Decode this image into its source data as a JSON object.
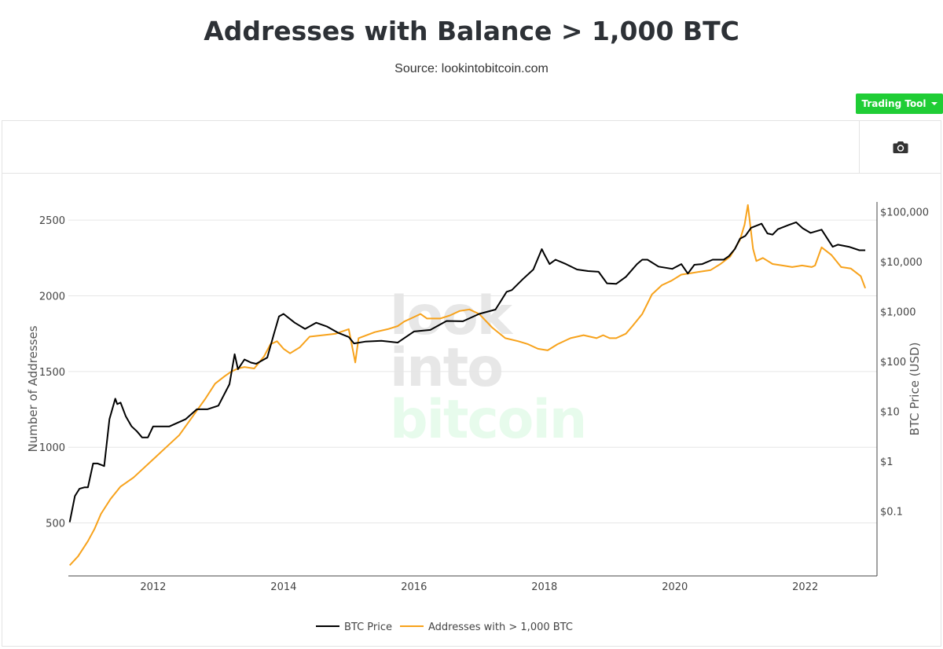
{
  "header": {
    "title": "Addresses with Balance > 1,000 BTC",
    "subtitle": "Source: lookintobitcoin.com"
  },
  "toolbar": {
    "trading_tool_label": "Trading Tool"
  },
  "icons": {
    "camera": "camera-icon",
    "dropdown": "caret-down-icon"
  },
  "watermark": {
    "line1": "look",
    "line2": "into",
    "line3": "bitcoin"
  },
  "colors": {
    "btc_price": "#000000",
    "addresses": "#f7a21b",
    "button": "#1fcd35"
  },
  "chart_data": {
    "type": "line",
    "xlabel": "",
    "ylabel": "Number of Addresses",
    "y2label": "BTC Price (USD)",
    "xlim": [
      2010.7,
      2023.1
    ],
    "ylim": [
      150,
      2620
    ],
    "y2lim_log10": [
      -2.3,
      5.2
    ],
    "y2_scale": "log",
    "grid": true,
    "legend_position": "bottom-center",
    "x_ticks": [
      "2012",
      "2014",
      "2016",
      "2018",
      "2020",
      "2022"
    ],
    "y_ticks": [
      "500",
      "1000",
      "1500",
      "2000",
      "2500"
    ],
    "y2_ticks": [
      "$0.1",
      "$1",
      "$10",
      "$100",
      "$1,000",
      "$10,000",
      "$100,000"
    ],
    "series": [
      {
        "name": "BTC Price",
        "axis": "y2",
        "x": [
          2010.72,
          2010.8,
          2010.87,
          2010.95,
          2011.0,
          2011.08,
          2011.15,
          2011.25,
          2011.33,
          2011.42,
          2011.45,
          2011.5,
          2011.58,
          2011.67,
          2011.75,
          2011.83,
          2011.92,
          2012.0,
          2012.25,
          2012.5,
          2012.67,
          2012.83,
          2013.0,
          2013.17,
          2013.25,
          2013.3,
          2013.4,
          2013.5,
          2013.58,
          2013.75,
          2013.85,
          2013.93,
          2014.0,
          2014.17,
          2014.33,
          2014.5,
          2014.67,
          2014.83,
          2015.0,
          2015.08,
          2015.25,
          2015.5,
          2015.75,
          2016.0,
          2016.25,
          2016.5,
          2016.75,
          2017.0,
          2017.25,
          2017.42,
          2017.5,
          2017.67,
          2017.83,
          2017.96,
          2018.0,
          2018.08,
          2018.17,
          2018.33,
          2018.5,
          2018.67,
          2018.83,
          2018.96,
          2019.1,
          2019.25,
          2019.42,
          2019.5,
          2019.58,
          2019.75,
          2019.96,
          2020.1,
          2020.2,
          2020.3,
          2020.42,
          2020.58,
          2020.75,
          2020.83,
          2020.92,
          2021.0,
          2021.08,
          2021.17,
          2021.33,
          2021.42,
          2021.5,
          2021.58,
          2021.75,
          2021.86,
          2021.96,
          2022.08,
          2022.25,
          2022.42,
          2022.5,
          2022.67,
          2022.83,
          2022.92
        ],
        "y": [
          0.06,
          0.2,
          0.28,
          0.3,
          0.3,
          0.9,
          0.9,
          0.8,
          7,
          18,
          14,
          15,
          8,
          5,
          4,
          3,
          3,
          5,
          5,
          7,
          11,
          11,
          13,
          35,
          140,
          70,
          110,
          95,
          90,
          120,
          350,
          800,
          900,
          600,
          450,
          600,
          500,
          380,
          310,
          230,
          250,
          260,
          240,
          400,
          430,
          650,
          640,
          900,
          1100,
          2500,
          2700,
          4500,
          7000,
          18000,
          14000,
          9000,
          11000,
          9000,
          7000,
          6500,
          6300,
          3700,
          3600,
          5000,
          9000,
          11000,
          11000,
          8000,
          7200,
          9000,
          5800,
          8700,
          9000,
          11000,
          11000,
          13000,
          18000,
          29000,
          33000,
          48000,
          58000,
          37000,
          35000,
          45000,
          55000,
          62000,
          47000,
          38000,
          44000,
          20000,
          22000,
          20000,
          17000,
          17000
        ]
      },
      {
        "name": "Addresses with > 1,000 BTC",
        "axis": "y1",
        "x": [
          2010.72,
          2010.85,
          2011.0,
          2011.1,
          2011.2,
          2011.35,
          2011.5,
          2011.7,
          2011.85,
          2012.0,
          2012.2,
          2012.4,
          2012.6,
          2012.8,
          2012.95,
          2013.1,
          2013.2,
          2013.3,
          2013.4,
          2013.55,
          2013.7,
          2013.8,
          2013.9,
          2014.0,
          2014.1,
          2014.25,
          2014.4,
          2014.6,
          2014.8,
          2015.0,
          2015.1,
          2015.15,
          2015.4,
          2015.6,
          2015.75,
          2015.85,
          2016.0,
          2016.1,
          2016.2,
          2016.4,
          2016.55,
          2016.7,
          2016.85,
          2017.0,
          2017.2,
          2017.4,
          2017.6,
          2017.75,
          2017.9,
          2018.05,
          2018.2,
          2018.4,
          2018.6,
          2018.8,
          2018.9,
          2019.0,
          2019.1,
          2019.25,
          2019.35,
          2019.5,
          2019.65,
          2019.8,
          2019.95,
          2020.1,
          2020.25,
          2020.4,
          2020.55,
          2020.7,
          2020.85,
          2021.0,
          2021.07,
          2021.12,
          2021.2,
          2021.25,
          2021.35,
          2021.5,
          2021.65,
          2021.8,
          2021.95,
          2022.1,
          2022.15,
          2022.25,
          2022.4,
          2022.55,
          2022.7,
          2022.85,
          2022.92
        ],
        "y": [
          220,
          280,
          380,
          460,
          560,
          660,
          740,
          800,
          860,
          920,
          1000,
          1080,
          1200,
          1320,
          1420,
          1470,
          1500,
          1520,
          1530,
          1520,
          1600,
          1680,
          1700,
          1650,
          1620,
          1660,
          1730,
          1740,
          1750,
          1780,
          1560,
          1720,
          1760,
          1780,
          1800,
          1830,
          1860,
          1880,
          1850,
          1850,
          1870,
          1900,
          1910,
          1880,
          1790,
          1720,
          1700,
          1680,
          1650,
          1640,
          1680,
          1720,
          1740,
          1720,
          1740,
          1720,
          1720,
          1750,
          1800,
          1880,
          2010,
          2070,
          2100,
          2140,
          2150,
          2160,
          2170,
          2210,
          2260,
          2370,
          2470,
          2600,
          2310,
          2230,
          2250,
          2210,
          2200,
          2190,
          2200,
          2190,
          2200,
          2320,
          2270,
          2190,
          2180,
          2130,
          2050
        ]
      }
    ]
  }
}
